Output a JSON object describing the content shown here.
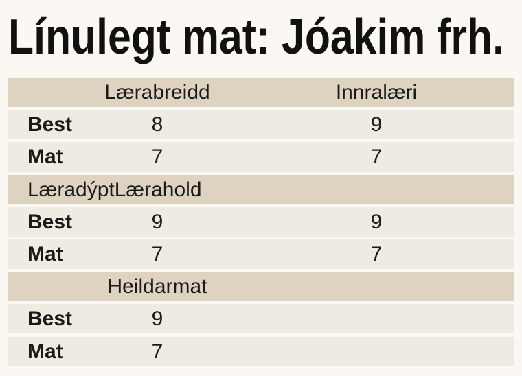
{
  "title": "Línulegt mat: Jóakim frh.",
  "table": {
    "sections": [
      {
        "headers": [
          "Lærabreidd",
          "Innralæri"
        ],
        "rows": [
          {
            "label": "Best",
            "values": [
              8,
              9
            ]
          },
          {
            "label": "Mat",
            "values": [
              7,
              7
            ]
          }
        ]
      },
      {
        "headers": [
          "Læradýpt",
          "Lærahold"
        ],
        "rows": [
          {
            "label": "Best",
            "values": [
              9,
              9
            ]
          },
          {
            "label": "Mat",
            "values": [
              7,
              7
            ]
          }
        ]
      },
      {
        "headers": [
          "Heildarmat"
        ],
        "rows": [
          {
            "label": "Best",
            "values": [
              9
            ]
          },
          {
            "label": "Mat",
            "values": [
              7
            ]
          }
        ]
      }
    ]
  }
}
